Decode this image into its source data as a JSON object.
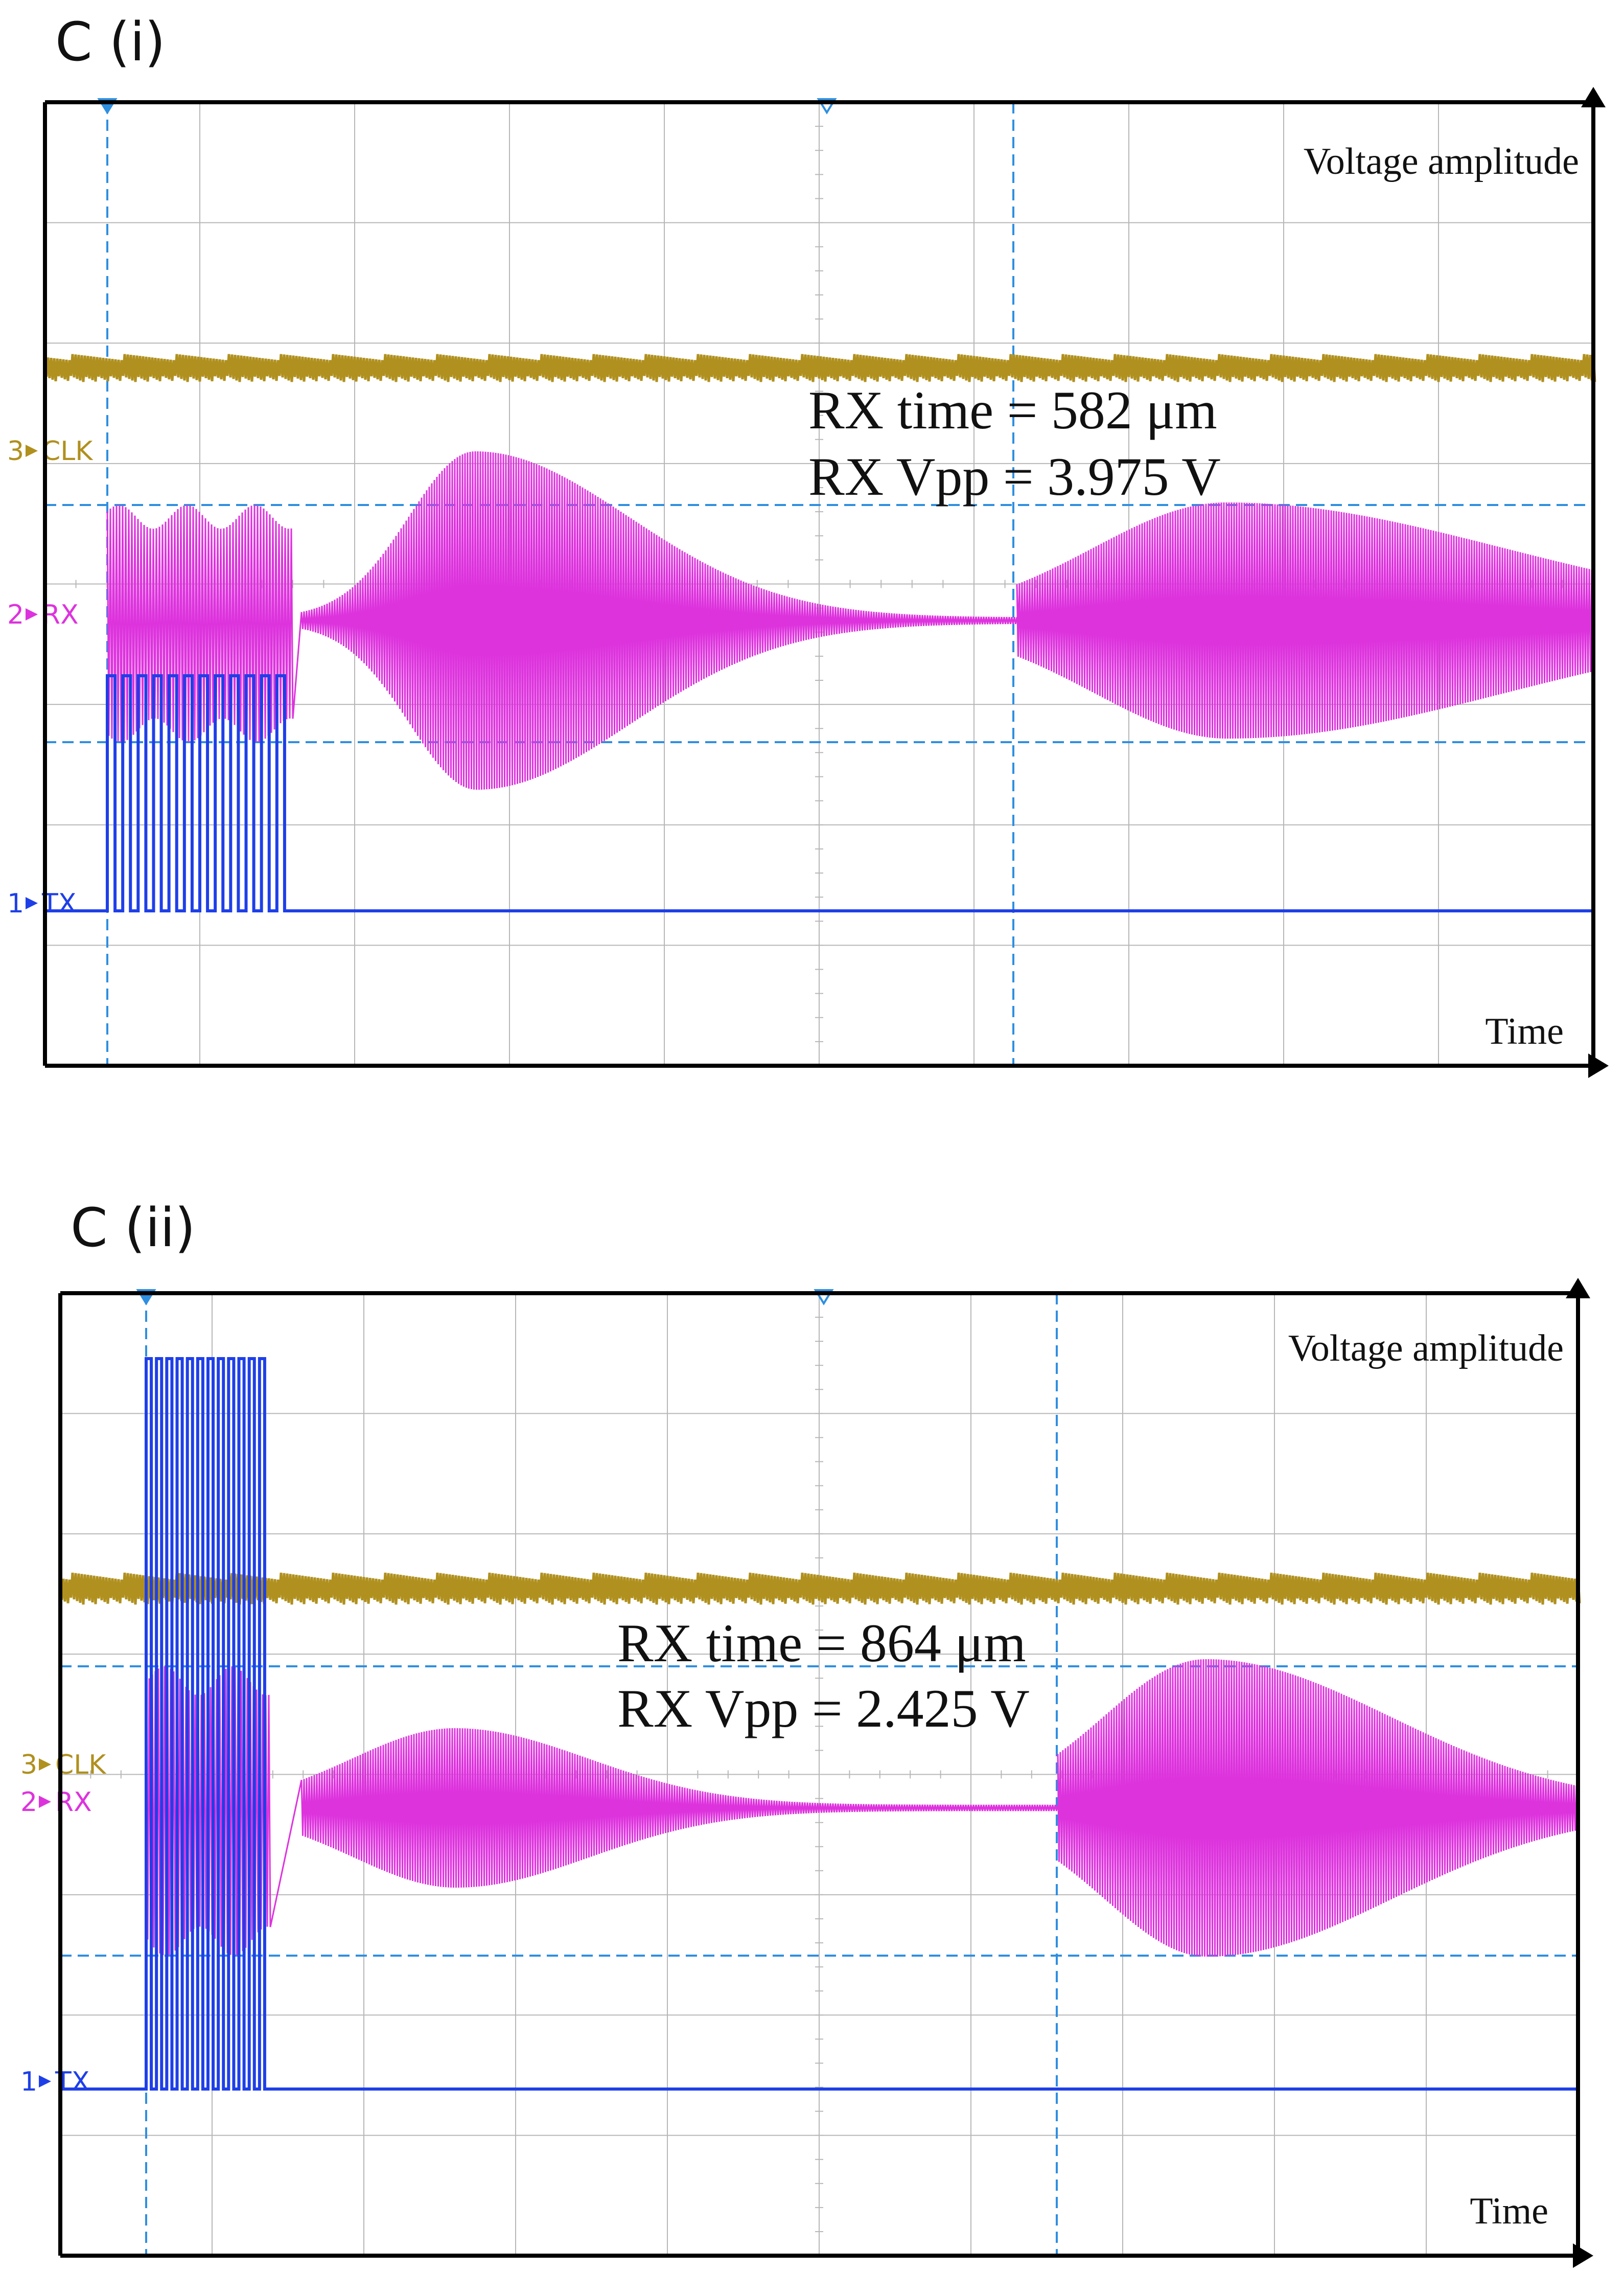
{
  "colors": {
    "tx": "#1e3fe8",
    "rx": "#dd33dd",
    "clk": "#b0901e",
    "grid": "#b7b7b7",
    "cursor": "#2f8fe0",
    "frame": "#000000"
  },
  "chart_data": [
    {
      "type": "line",
      "panel_label": "C (i)",
      "ylabel": "Voltage amplitude",
      "xlabel": "Time",
      "channels": [
        {
          "number": "3",
          "name": "CLK"
        },
        {
          "number": "2",
          "name": "RX"
        },
        {
          "number": "1",
          "name": "TX"
        }
      ],
      "measurements": {
        "rx_time": "RX time = 582 μm",
        "rx_vpp": "RX Vpp = 3.975 V"
      },
      "rx_vpp_volts": 3.975,
      "rx_time_value": 582
    },
    {
      "type": "line",
      "panel_label": "C (ii)",
      "ylabel": "Voltage amplitude",
      "xlabel": "Time",
      "channels": [
        {
          "number": "3",
          "name": "CLK"
        },
        {
          "number": "2",
          "name": "RX"
        },
        {
          "number": "1",
          "name": "TX"
        }
      ],
      "measurements": {
        "rx_time": "RX time = 864 μm",
        "rx_vpp": "RX Vpp = 2.425 V"
      },
      "rx_vpp_volts": 2.425,
      "rx_time_value": 864
    }
  ]
}
